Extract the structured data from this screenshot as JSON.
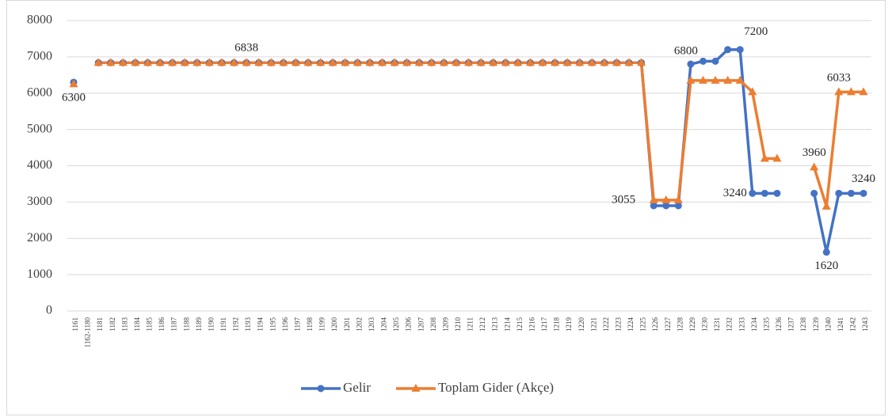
{
  "chart_data": {
    "type": "line",
    "categories": [
      "1161",
      "1162-1180",
      "1181",
      "1182",
      "1183",
      "1184",
      "1185",
      "1186",
      "1187",
      "1188",
      "1189",
      "1190",
      "1191",
      "1192",
      "1193",
      "1194",
      "1195",
      "1196",
      "1197",
      "1198",
      "1199",
      "1200",
      "1201",
      "1202",
      "1203",
      "1204",
      "1205",
      "1206",
      "1207",
      "1208",
      "1209",
      "1210",
      "1211",
      "1212",
      "1213",
      "1214",
      "1215",
      "1216",
      "1217",
      "1218",
      "1219",
      "1220",
      "1221",
      "1222",
      "1223",
      "1224",
      "1225",
      "1226",
      "1227",
      "1228",
      "1229",
      "1230",
      "1231",
      "1232",
      "1233",
      "1234",
      "1235",
      "1236",
      "1237",
      "1238",
      "1239",
      "1240",
      "1241",
      "1242",
      "1243"
    ],
    "series": [
      {
        "name": "Gelir",
        "color": "#4472c4",
        "marker": "circle",
        "values": [
          6300,
          null,
          6838,
          6838,
          6838,
          6838,
          6838,
          6838,
          6838,
          6838,
          6838,
          6838,
          6838,
          6838,
          6838,
          6838,
          6838,
          6838,
          6838,
          6838,
          6838,
          6838,
          6838,
          6838,
          6838,
          6838,
          6838,
          6838,
          6838,
          6838,
          6838,
          6838,
          6838,
          6838,
          6838,
          6838,
          6838,
          6838,
          6838,
          6838,
          6838,
          6838,
          6838,
          6838,
          6838,
          6838,
          6838,
          2900,
          2900,
          2900,
          6800,
          6880,
          6880,
          7200,
          7200,
          3240,
          3240,
          3240,
          null,
          null,
          3240,
          1620,
          3240,
          3240,
          3240
        ],
        "value_labels": [
          "6300",
          null,
          null,
          null,
          null,
          null,
          null,
          null,
          null,
          null,
          null,
          null,
          null,
          null,
          "6838",
          null,
          null,
          null,
          null,
          null,
          null,
          null,
          null,
          null,
          null,
          null,
          null,
          null,
          null,
          null,
          null,
          null,
          null,
          null,
          null,
          null,
          null,
          null,
          null,
          null,
          null,
          null,
          null,
          null,
          null,
          null,
          null,
          null,
          null,
          null,
          "6800",
          null,
          null,
          null,
          "7200",
          "3240",
          null,
          null,
          null,
          null,
          null,
          "1620",
          null,
          null,
          "3240"
        ]
      },
      {
        "name": "Toplam Gider (Akçe)",
        "color": "#ed7d31",
        "marker": "triangle",
        "values": [
          6250,
          null,
          6838,
          6838,
          6838,
          6838,
          6838,
          6838,
          6838,
          6838,
          6838,
          6838,
          6838,
          6838,
          6838,
          6838,
          6838,
          6838,
          6838,
          6838,
          6838,
          6838,
          6838,
          6838,
          6838,
          6838,
          6838,
          6838,
          6838,
          6838,
          6838,
          6838,
          6838,
          6838,
          6838,
          6838,
          6838,
          6838,
          6838,
          6838,
          6838,
          6838,
          6838,
          6838,
          6838,
          6838,
          6838,
          3055,
          3055,
          3055,
          6350,
          6350,
          6350,
          6350,
          6350,
          6033,
          4200,
          4200,
          null,
          null,
          3960,
          2880,
          6033,
          6033,
          6033
        ],
        "value_labels": [
          null,
          null,
          null,
          null,
          null,
          null,
          null,
          null,
          null,
          null,
          null,
          null,
          null,
          null,
          null,
          null,
          null,
          null,
          null,
          null,
          null,
          null,
          null,
          null,
          null,
          null,
          null,
          null,
          null,
          null,
          null,
          null,
          null,
          null,
          null,
          null,
          null,
          null,
          null,
          null,
          null,
          null,
          null,
          null,
          null,
          null,
          null,
          "3055",
          null,
          null,
          null,
          null,
          null,
          null,
          null,
          null,
          null,
          null,
          null,
          null,
          "3960",
          null,
          "6033",
          null,
          null
        ]
      }
    ],
    "ylim": [
      0,
      8000
    ],
    "yticks": [
      0,
      1000,
      2000,
      3000,
      4000,
      5000,
      6000,
      7000,
      8000
    ],
    "grid": true,
    "legend": "bottom"
  }
}
